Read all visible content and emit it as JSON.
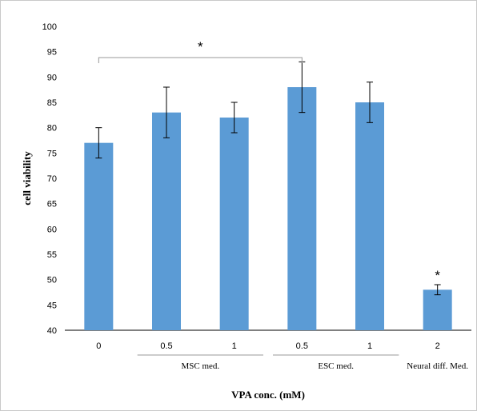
{
  "chart_data": {
    "type": "bar",
    "categories": [
      "0",
      "0.5",
      "1",
      "0.5",
      "1",
      "2"
    ],
    "values": [
      77,
      83,
      82,
      88,
      85,
      48
    ],
    "error": [
      [
        74,
        80
      ],
      [
        78,
        88
      ],
      [
        79,
        85
      ],
      [
        83,
        93
      ],
      [
        81,
        89
      ],
      [
        47,
        49
      ]
    ],
    "groups": [
      {
        "label": "MSC med.",
        "categories": [
          1,
          2
        ]
      },
      {
        "label": "ESC med.",
        "categories": [
          3,
          4
        ]
      },
      {
        "label": "Neural diff. Med.",
        "categories": [
          5
        ]
      }
    ],
    "significance": [
      {
        "label": "*",
        "bracket": [
          0,
          3
        ]
      },
      {
        "label": "*",
        "category": 5
      }
    ],
    "xlabel": "VPA conc. (mM)",
    "ylabel": "cell viability",
    "ylim": [
      40,
      100
    ],
    "yticks": [
      40,
      45,
      50,
      55,
      60,
      65,
      70,
      75,
      80,
      85,
      90,
      95,
      100
    ],
    "bar_color": "#5b9bd5",
    "grid": false
  }
}
